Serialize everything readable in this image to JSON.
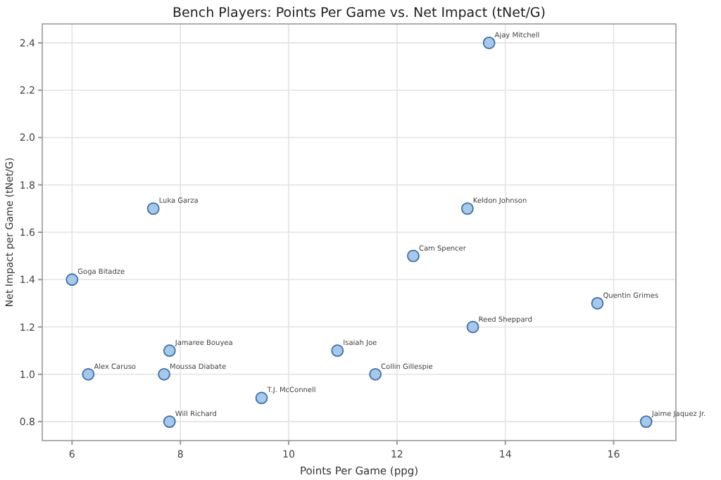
{
  "chart_data": {
    "type": "scatter",
    "title": "Bench Players: Points Per Game vs. Net Impact (tNet/G)",
    "xlabel": "Points Per Game (ppg)",
    "ylabel": "Net Impact per Game (tNet/G)",
    "x": [
      13.7,
      13.3,
      12.3,
      15.7,
      13.4,
      11.6,
      16.6,
      10.9,
      7.5,
      6.0,
      7.8,
      6.3,
      7.7,
      9.5,
      7.8
    ],
    "series": [
      {
        "color": "#a8c8ea",
        "values": [
          2.4,
          1.7,
          1.5,
          1.3,
          1.2,
          1.0,
          0.8,
          1.1,
          1.7,
          1.4,
          1.1,
          1.0,
          1.0,
          0.9,
          0.8
        ]
      }
    ],
    "annotations": [
      {
        "text": "Ajay Mitchell",
        "x": 13.7,
        "y": 2.4
      },
      {
        "text": "Keldon Johnson",
        "x": 13.3,
        "y": 1.7
      },
      {
        "text": "Cam Spencer",
        "x": 12.3,
        "y": 1.5
      },
      {
        "text": "Quentin Grimes",
        "x": 15.7,
        "y": 1.3
      },
      {
        "text": "Reed Sheppard",
        "x": 13.4,
        "y": 1.2
      },
      {
        "text": "Collin Gillespie",
        "x": 11.6,
        "y": 1.0
      },
      {
        "text": "Jaime Jaquez Jr.",
        "x": 16.6,
        "y": 0.8
      },
      {
        "text": "Isaiah Joe",
        "x": 10.9,
        "y": 1.1
      },
      {
        "text": "Luka Garza",
        "x": 7.5,
        "y": 1.7
      },
      {
        "text": "Goga Bitadze",
        "x": 6.0,
        "y": 1.4
      },
      {
        "text": "Jamaree Bouyea",
        "x": 7.8,
        "y": 1.1
      },
      {
        "text": "Alex Caruso",
        "x": 6.3,
        "y": 1.0
      },
      {
        "text": "Moussa Diabate",
        "x": 7.7,
        "y": 1.0
      },
      {
        "text": "T.J. McConnell",
        "x": 9.5,
        "y": 0.9
      },
      {
        "text": "Will Richard",
        "x": 7.8,
        "y": 0.8
      }
    ],
    "xlim": [
      5.45,
      17.15
    ],
    "xticks": [
      6,
      8,
      10,
      12,
      14,
      16
    ],
    "ylim": [
      0.72,
      2.48
    ],
    "yticks": [
      {
        "value": 0.8,
        "label": "0.8"
      },
      {
        "value": 1.0,
        "label": "1.0"
      },
      {
        "value": 1.2,
        "label": "1.2"
      },
      {
        "value": 1.4,
        "label": "1.4"
      },
      {
        "value": 1.6,
        "label": "1.6"
      },
      {
        "value": 1.8,
        "label": "1.8"
      },
      {
        "value": 2.0,
        "label": "2.0"
      },
      {
        "value": 2.2,
        "label": "2.2"
      },
      {
        "value": 2.4,
        "label": "2.4"
      }
    ],
    "grid": true,
    "marker": "circle"
  }
}
